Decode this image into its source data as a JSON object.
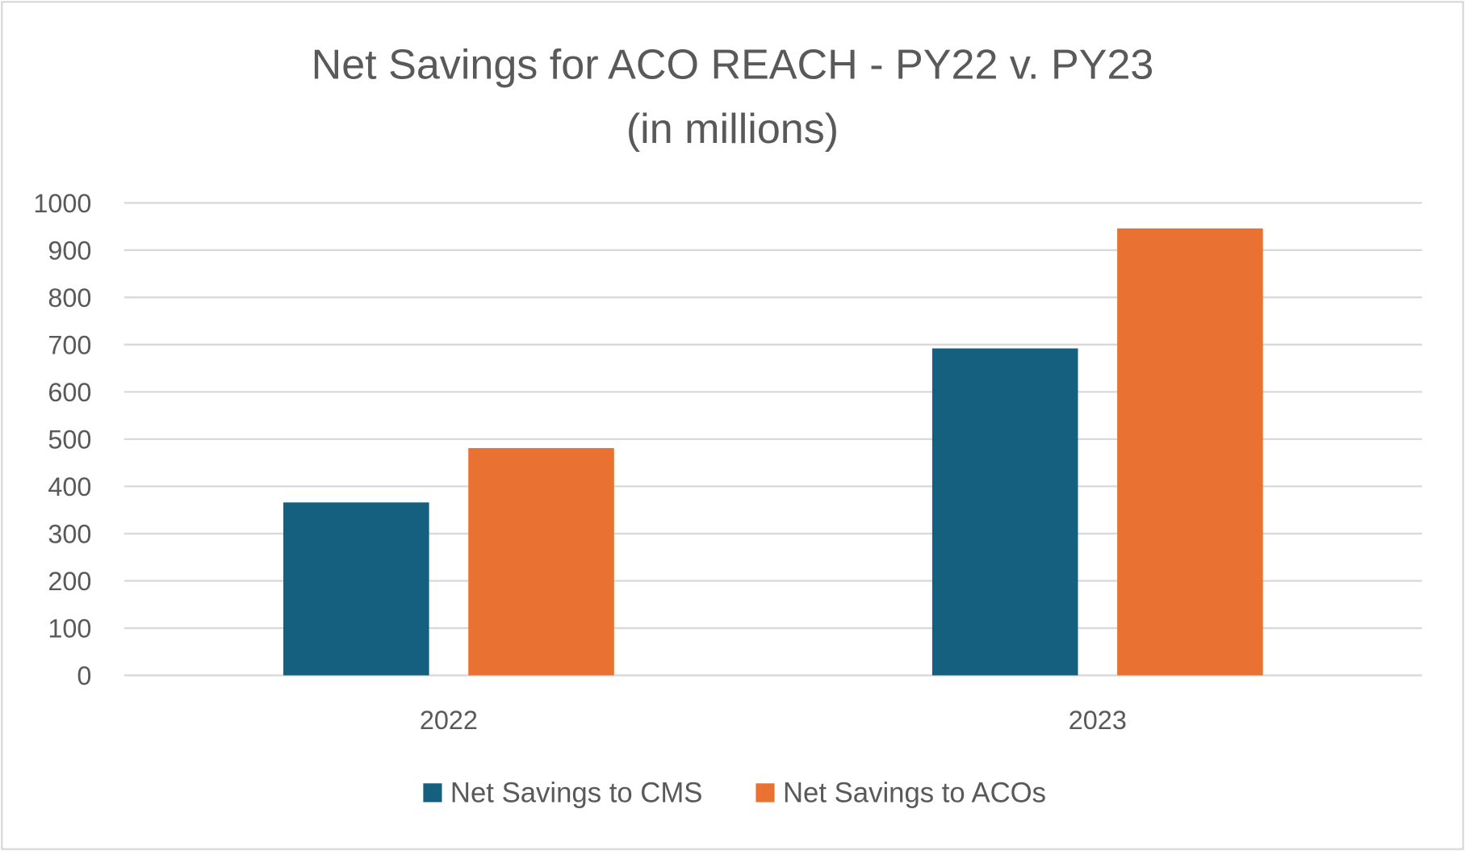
{
  "chart_data": {
    "type": "bar",
    "title": "Net Savings for ACO REACH - PY22 v. PY23",
    "subtitle": "(in millions)",
    "xlabel": "",
    "ylabel": "",
    "categories": [
      "2022",
      "2023"
    ],
    "series": [
      {
        "name": "Net Savings to CMS",
        "values": [
          366,
          692
        ],
        "color": "#16607F"
      },
      {
        "name": "Net Savings to ACOs",
        "values": [
          481,
          946
        ],
        "color": "#E97132"
      }
    ],
    "ylim": [
      0,
      1000
    ],
    "yticks": [
      "0",
      "100",
      "200",
      "300",
      "400",
      "500",
      "600",
      "700",
      "800",
      "900",
      "1000"
    ],
    "grid": true,
    "legend_position": "bottom"
  }
}
